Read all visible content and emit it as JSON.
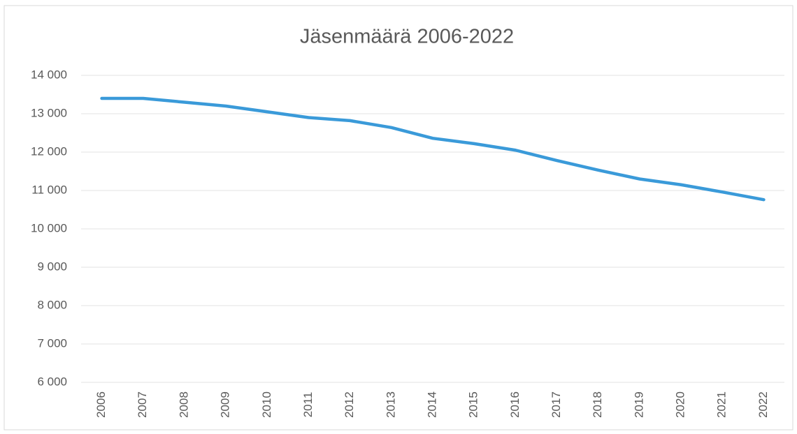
{
  "chart_data": {
    "type": "line",
    "title": "Jäsenmäärä 2006-2022",
    "categories": [
      "2006",
      "2007",
      "2008",
      "2009",
      "2010",
      "2011",
      "2012",
      "2013",
      "2014",
      "2015",
      "2016",
      "2017",
      "2018",
      "2019",
      "2020",
      "2021",
      "2022"
    ],
    "series": [
      {
        "name": "Jäsenmäärä",
        "color": "#3a9ad9",
        "values": [
          13400,
          13400,
          13300,
          13200,
          13050,
          12900,
          12820,
          12640,
          12360,
          12220,
          12050,
          11780,
          11530,
          11300,
          11150,
          10960,
          10760
        ]
      }
    ],
    "ylim": [
      6000,
      14000
    ],
    "yticks": [
      {
        "value": 6000,
        "label": "6 000"
      },
      {
        "value": 7000,
        "label": "7 000"
      },
      {
        "value": 8000,
        "label": "8 000"
      },
      {
        "value": 9000,
        "label": "9 000"
      },
      {
        "value": 10000,
        "label": "10 000"
      },
      {
        "value": 11000,
        "label": "11 000"
      },
      {
        "value": 12000,
        "label": "12 000"
      },
      {
        "value": 13000,
        "label": "13 000"
      },
      {
        "value": 14000,
        "label": "14 000"
      }
    ],
    "grid": true
  }
}
